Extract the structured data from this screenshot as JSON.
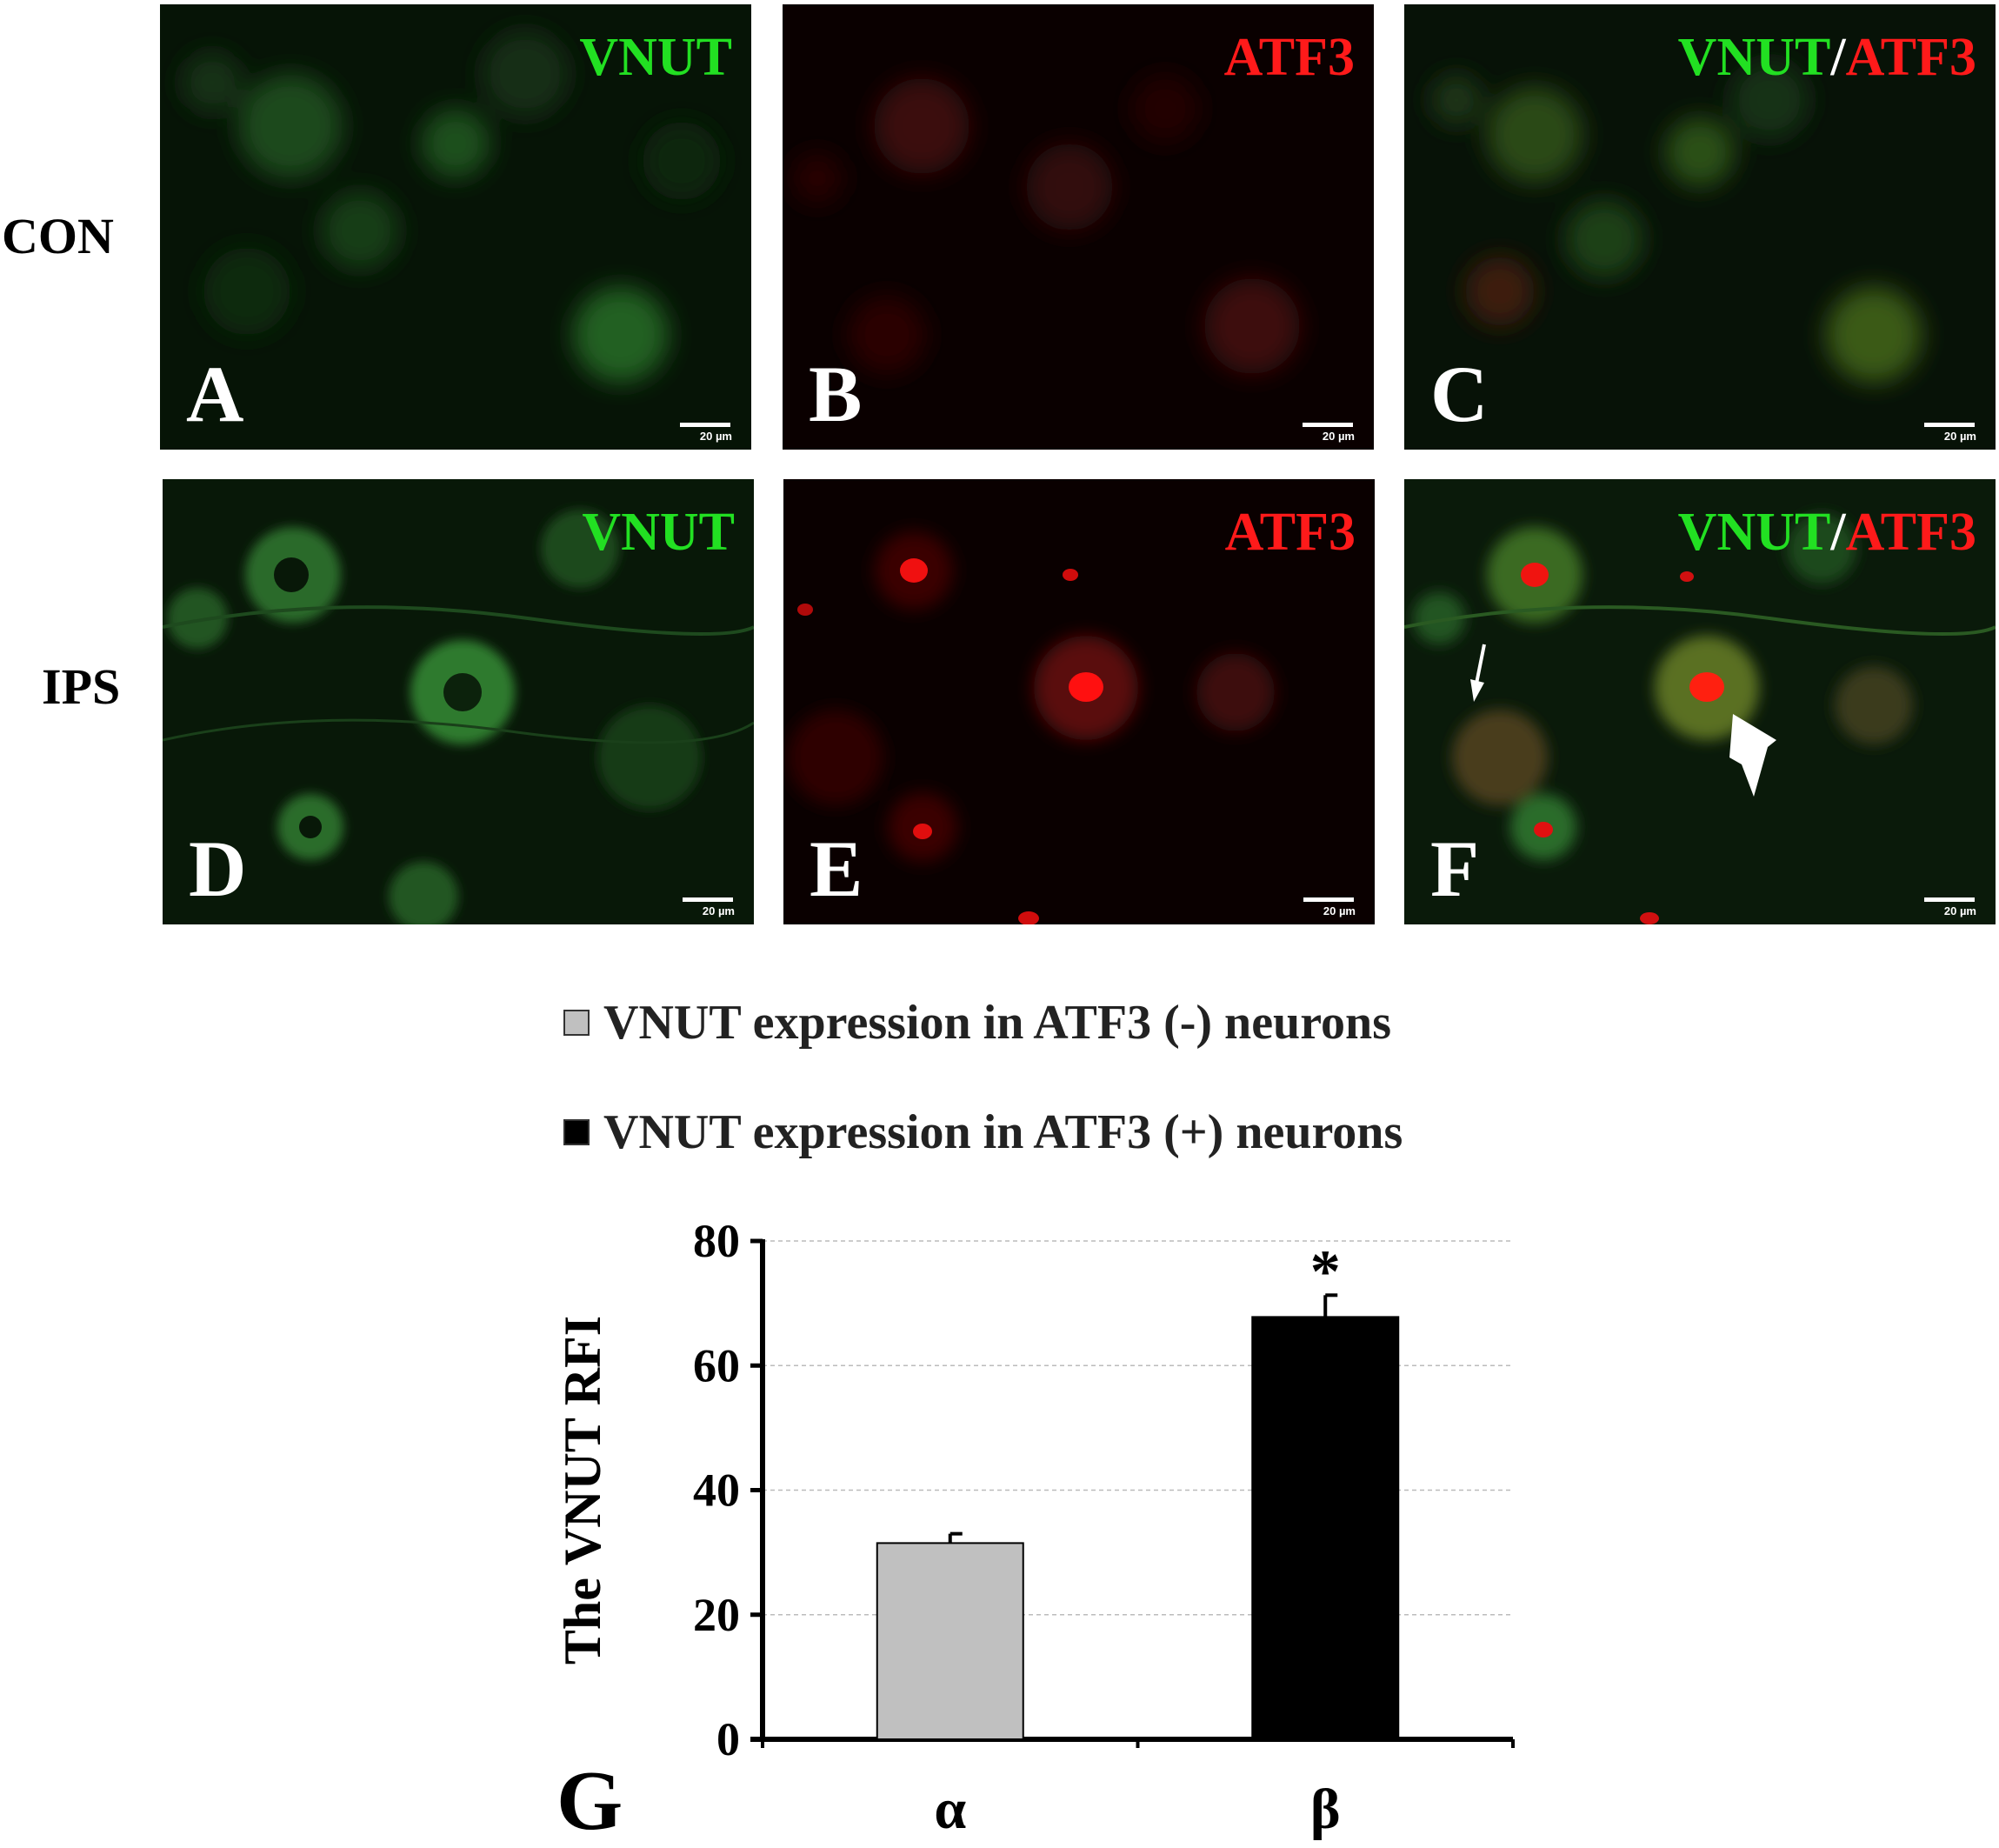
{
  "rows": {
    "con": "CON",
    "ips": "IPS"
  },
  "panels": [
    {
      "id": "A",
      "label": "A",
      "stain_green": "VNUT",
      "sep": "",
      "stain_red": "",
      "scale": "20 µm"
    },
    {
      "id": "B",
      "label": "B",
      "stain_green": "",
      "sep": "",
      "stain_red": "ATF3",
      "scale": "20 µm"
    },
    {
      "id": "C",
      "label": "C",
      "stain_green": "VNUT",
      "sep": "/",
      "stain_red": "ATF3",
      "scale": "20 µm"
    },
    {
      "id": "D",
      "label": "D",
      "stain_green": "VNUT",
      "sep": "",
      "stain_red": "",
      "scale": "20 µm"
    },
    {
      "id": "E",
      "label": "E",
      "stain_green": "",
      "sep": "",
      "stain_red": "ATF3",
      "scale": "20 µm"
    },
    {
      "id": "F",
      "label": "F",
      "stain_green": "VNUT",
      "sep": "/",
      "stain_red": "ATF3",
      "scale": "20 µm"
    }
  ],
  "legend": [
    {
      "label": "VNUT expression in ATF3 (-) neurons",
      "color": "#c0c0c0"
    },
    {
      "label": "VNUT expression in ATF3 (+) neurons",
      "color": "#000000"
    }
  ],
  "panel_g_label": "G",
  "chart_data": {
    "type": "bar",
    "categories": [
      "α",
      "β"
    ],
    "values": [
      31.5,
      67.8
    ],
    "errors": [
      1.5,
      3.5
    ],
    "colors": [
      "#c0c0c0",
      "#000000"
    ],
    "significance": [
      "",
      "*"
    ],
    "ylabel": "The VNUT RFI",
    "ylim": [
      0,
      80
    ],
    "yticks": [
      0,
      20,
      40,
      60,
      80
    ],
    "grid": true
  }
}
